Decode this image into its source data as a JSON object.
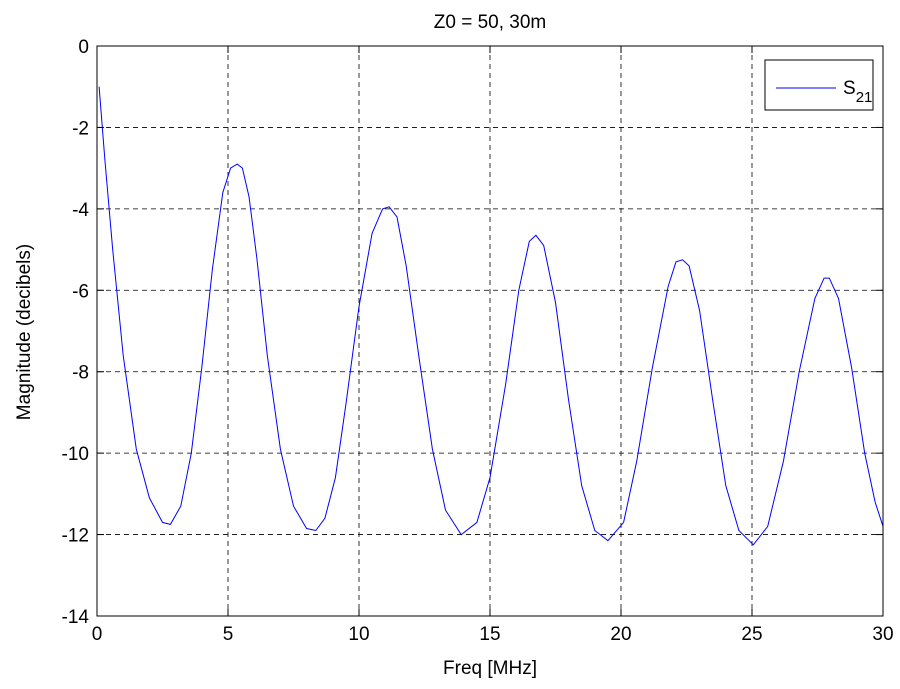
{
  "chart_data": {
    "type": "line",
    "title": "Z0 = 50, 30m",
    "xlabel": "Freq [MHz]",
    "ylabel": "Magnitude (decibels)",
    "xlim": [
      0,
      30
    ],
    "ylim": [
      -14,
      0
    ],
    "xticks": [
      0,
      5,
      10,
      15,
      20,
      25,
      30
    ],
    "yticks": [
      0,
      -2,
      -4,
      -6,
      -8,
      -10,
      -12,
      -14
    ],
    "x_tick_labels": [
      "0",
      "5",
      "10",
      "15",
      "20",
      "25",
      "30"
    ],
    "y_tick_labels": [
      "0",
      "-2",
      "-4",
      "-6",
      "-8",
      "-10",
      "-12",
      "-14"
    ],
    "grid": true,
    "legend": {
      "position": "top-right",
      "label_main": "S",
      "label_sub": "21"
    },
    "series": [
      {
        "name": "S21",
        "color": "#0000ff",
        "x": [
          0.08,
          0.3,
          0.6,
          1.0,
          1.5,
          2.0,
          2.5,
          2.8,
          3.2,
          3.6,
          4.0,
          4.4,
          4.8,
          5.1,
          5.35,
          5.55,
          5.8,
          6.1,
          6.5,
          7.0,
          7.5,
          8.0,
          8.35,
          8.7,
          9.1,
          9.5,
          10.0,
          10.5,
          10.9,
          11.15,
          11.45,
          11.8,
          12.3,
          12.8,
          13.3,
          13.9,
          14.5,
          15.0,
          15.6,
          16.1,
          16.5,
          16.75,
          17.05,
          17.5,
          18.0,
          18.5,
          19.0,
          19.5,
          20.1,
          20.6,
          21.2,
          21.8,
          22.1,
          22.35,
          22.6,
          23.0,
          23.5,
          24.0,
          24.5,
          25.05,
          25.6,
          26.2,
          26.8,
          27.4,
          27.75,
          27.95,
          28.3,
          28.8,
          29.3,
          29.7,
          30.0
        ],
        "values": [
          -1.0,
          -2.8,
          -5.0,
          -7.6,
          -9.9,
          -11.1,
          -11.7,
          -11.75,
          -11.3,
          -10.0,
          -7.9,
          -5.5,
          -3.6,
          -3.0,
          -2.9,
          -3.0,
          -3.7,
          -5.2,
          -7.6,
          -9.9,
          -11.3,
          -11.85,
          -11.9,
          -11.6,
          -10.6,
          -8.8,
          -6.4,
          -4.6,
          -4.0,
          -3.95,
          -4.2,
          -5.4,
          -7.7,
          -9.9,
          -11.4,
          -12.0,
          -11.7,
          -10.6,
          -8.3,
          -6.0,
          -4.8,
          -4.65,
          -4.9,
          -6.3,
          -8.7,
          -10.8,
          -11.9,
          -12.15,
          -11.7,
          -10.2,
          -7.9,
          -5.9,
          -5.3,
          -5.25,
          -5.4,
          -6.5,
          -8.7,
          -10.8,
          -11.9,
          -12.25,
          -11.8,
          -10.2,
          -8.0,
          -6.2,
          -5.7,
          -5.7,
          -6.2,
          -7.9,
          -10.0,
          -11.2,
          -11.8
        ]
      }
    ]
  }
}
